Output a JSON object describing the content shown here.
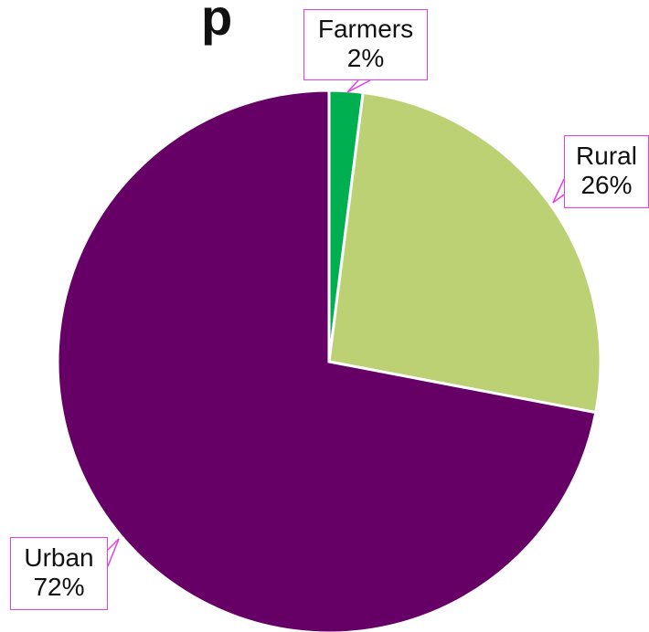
{
  "title_fragment": "p",
  "chart_data": {
    "type": "pie",
    "start_angle_deg": 0,
    "direction": "clockwise",
    "slice_border": "#ffffff",
    "callout_border": "#e63fe6",
    "slices": [
      {
        "label": "Farmers",
        "value": 2,
        "display": "2%",
        "color": "#00b050"
      },
      {
        "label": "Rural",
        "value": 26,
        "display": "26%",
        "color": "#bcd174"
      },
      {
        "label": "Urban",
        "value": 72,
        "display": "72%",
        "color": "#660066"
      }
    ]
  }
}
